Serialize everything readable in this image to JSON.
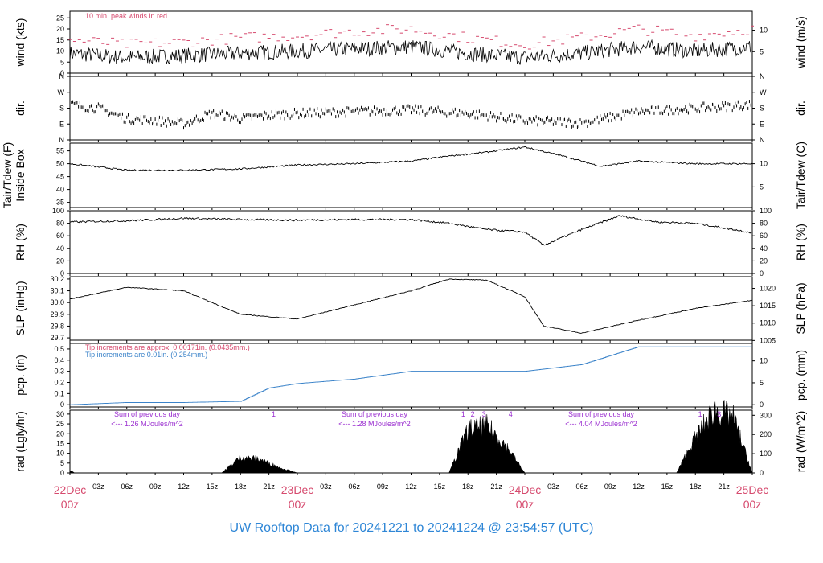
{
  "colors": {
    "accent_red": "#d64a6e",
    "accent_blue": "#3b83c9",
    "purple": "#9b30d0",
    "footer_blue": "#2e86d6",
    "trace": "#000000"
  },
  "footer": {
    "title": "UW Rooftop Data for 20241221  to  20241224 @ 23:54:57  (UTC)"
  },
  "time_axis": {
    "hours": [
      "03z",
      "06z",
      "09z",
      "12z",
      "15z",
      "18z",
      "21z",
      "03z",
      "06z",
      "09z",
      "12z",
      "15z",
      "18z",
      "21z",
      "03z",
      "06z",
      "09z",
      "12z",
      "15z",
      "18z",
      "21z"
    ],
    "days": [
      {
        "date": "22Dec",
        "time": "00z"
      },
      {
        "date": "23Dec",
        "time": "00z"
      },
      {
        "date": "24Dec",
        "time": "00z"
      },
      {
        "date": "25Dec",
        "time": "00z"
      }
    ]
  },
  "panels": [
    {
      "id": "wind",
      "left_label": "wind (kts)",
      "right_label": "wind (m/s)",
      "left_ticks": [
        "0",
        "5",
        "10",
        "15",
        "20",
        "25"
      ],
      "right_ticks": [
        "5",
        "10"
      ],
      "note": "10 min. peak winds in red"
    },
    {
      "id": "dir",
      "left_label": "dir.",
      "right_label": "dir.",
      "left_ticks": [
        "N",
        "E",
        "S",
        "W",
        "N"
      ],
      "right_ticks": [
        "N",
        "E",
        "S",
        "W",
        "N"
      ]
    },
    {
      "id": "temp",
      "left_label": "Inside Box",
      "left_label2": "Tair/Tdew (F)",
      "right_label": "Tair/Tdew (C)",
      "left_ticks": [
        "35",
        "40",
        "45",
        "50",
        "55"
      ],
      "right_ticks": [
        "5",
        "10"
      ]
    },
    {
      "id": "rh",
      "left_label": "RH (%)",
      "right_label": "RH (%)",
      "left_ticks": [
        "0",
        "20",
        "40",
        "60",
        "80",
        "100"
      ],
      "right_ticks": [
        "0",
        "20",
        "40",
        "60",
        "80",
        "100"
      ]
    },
    {
      "id": "slp",
      "left_label": "SLP (inHg)",
      "right_label": "SLP (hPa)",
      "left_ticks": [
        "29.7",
        "29.8",
        "29.9",
        "30.0",
        "30.1",
        "30.2"
      ],
      "right_ticks": [
        "1005",
        "1010",
        "1015",
        "1020"
      ]
    },
    {
      "id": "pcp",
      "left_label": "pcp. (in)",
      "right_label": "pcp. (mm)",
      "left_ticks": [
        "0",
        "0.1",
        "0.2",
        "0.3",
        "0.4",
        "0.5"
      ],
      "right_ticks": [
        "0",
        "5",
        "10"
      ],
      "note1": "Tip increments are approx. 0.00171in. (0.0435mm.)",
      "note2": "Tip increments are 0.01in. (0.254mm.)"
    },
    {
      "id": "rad",
      "left_label": "rad (Lgly/hr)",
      "right_label": "rad (W/m^2)",
      "left_ticks": [
        "0",
        "5",
        "10",
        "15",
        "20",
        "25",
        "30"
      ],
      "right_ticks": [
        "0",
        "100",
        "200",
        "300"
      ],
      "day_sums": [
        {
          "line1": "Sum of previous day",
          "line2": "<--- 1.26 MJoules/m^2"
        },
        {
          "line1": "Sum of previous day",
          "line2": "<--- 1.28 MJoules/m^2"
        },
        {
          "line1": "Sum of previous day",
          "line2": "<--- 4.04 MJoules/m^2"
        }
      ],
      "markers": [
        "1",
        "1",
        "2",
        "3",
        "4",
        "1",
        "3"
      ]
    }
  ],
  "chart_data": [
    {
      "type": "line",
      "ylabel": "wind (kts)",
      "ylabel_right": "wind (m/s)",
      "ylim": [
        0,
        28
      ],
      "x_hours": [
        0,
        6,
        12,
        18,
        24,
        30,
        36,
        42,
        48,
        54,
        60,
        66,
        72
      ],
      "series": [
        {
          "values": [
            9,
            7,
            8,
            9,
            10,
            11,
            12,
            9,
            7,
            9,
            12,
            10,
            12
          ]
        },
        {
          "values": [
            15,
            13,
            14,
            16,
            17,
            19,
            20,
            16,
            13,
            16,
            20,
            17,
            20
          ]
        }
      ]
    },
    {
      "type": "scatter",
      "ylabel": "dir.",
      "ylim": [
        0,
        360
      ],
      "x_hours": [
        0,
        3,
        6,
        9,
        12,
        15,
        18,
        21,
        24,
        30,
        36,
        42,
        48,
        54,
        60,
        66,
        72
      ],
      "values": [
        200,
        180,
        120,
        110,
        90,
        150,
        120,
        140,
        150,
        160,
        170,
        150,
        110,
        95,
        160,
        180,
        200
      ]
    },
    {
      "type": "line",
      "ylabel": "Tair/Tdew (F)",
      "ylabel_right": "Tair/Tdew (C)",
      "ylim": [
        33,
        58
      ],
      "x_hours": [
        0,
        6,
        12,
        18,
        24,
        30,
        36,
        40,
        44,
        48,
        52,
        56,
        60,
        66,
        72
      ],
      "values": [
        50,
        47.5,
        47.5,
        48,
        49.5,
        50,
        51,
        53,
        54.5,
        56.5,
        53,
        49,
        51,
        50,
        50
      ]
    },
    {
      "type": "line",
      "ylabel": "RH (%)",
      "ylim": [
        0,
        100
      ],
      "x_hours": [
        0,
        6,
        12,
        18,
        24,
        30,
        36,
        40,
        44,
        48,
        50,
        54,
        58,
        62,
        66,
        72
      ],
      "values": [
        82,
        84,
        88,
        86,
        85,
        86,
        86,
        80,
        70,
        66,
        45,
        70,
        92,
        82,
        80,
        65
      ]
    },
    {
      "type": "line",
      "ylabel": "SLP (inHg)",
      "ylabel_right": "SLP (hPa)",
      "ylim": [
        29.68,
        30.22
      ],
      "x_hours": [
        0,
        6,
        12,
        18,
        24,
        30,
        36,
        40,
        44,
        48,
        50,
        54,
        60,
        66,
        72
      ],
      "values": [
        30.03,
        30.13,
        30.1,
        29.9,
        29.86,
        29.98,
        30.1,
        30.2,
        30.19,
        30.05,
        29.8,
        29.74,
        29.85,
        29.95,
        30.02
      ]
    },
    {
      "type": "line",
      "ylabel": "pcp. (in)",
      "ylabel_right": "pcp. (mm)",
      "ylim": [
        -0.02,
        0.55
      ],
      "x_hours": [
        0,
        6,
        12,
        18,
        21,
        24,
        30,
        36,
        42,
        48,
        54,
        60,
        66,
        72
      ],
      "values": [
        0,
        0.02,
        0.02,
        0.03,
        0.15,
        0.19,
        0.23,
        0.3,
        0.3,
        0.3,
        0.36,
        0.52,
        0.52,
        0.52
      ]
    },
    {
      "type": "area",
      "ylabel": "rad (Lgly/hr)",
      "ylabel_right": "rad (W/m^2)",
      "ylim": [
        0,
        32
      ],
      "x_hours": [
        0,
        0.5,
        16,
        18,
        20,
        22,
        24,
        40,
        42,
        44,
        46,
        48,
        64,
        66,
        68,
        70,
        72
      ],
      "values": [
        1.5,
        0,
        0,
        8,
        7,
        3,
        0,
        0,
        22,
        24,
        14,
        0,
        0,
        18,
        32,
        28,
        0
      ]
    }
  ]
}
